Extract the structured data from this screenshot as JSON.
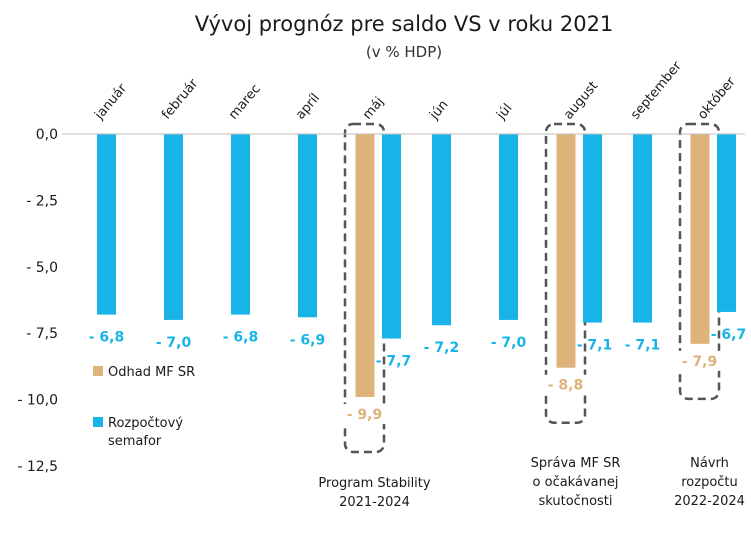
{
  "chart_data": {
    "type": "bar",
    "title": "Vývoj prognóz pre saldo VS v roku 2021",
    "subtitle": "(v % HDP)",
    "ylim": [
      -12.5,
      0
    ],
    "ytick_labels": [
      "0,0",
      "- 2,5",
      "- 5,0",
      "- 7,5",
      "- 10,0",
      "- 12,5"
    ],
    "ytick_values": [
      0,
      -2.5,
      -5,
      -7.5,
      -10,
      -12.5
    ],
    "grid": false,
    "legend_placement": "lower-left",
    "categories": [
      "január",
      "február",
      "marec",
      "apríl",
      "máj",
      "jún",
      "júl",
      "august",
      "september",
      "október"
    ],
    "series": [
      {
        "name": "Odhad MF SR",
        "color": "#ddb37a",
        "values": [
          null,
          null,
          null,
          null,
          -9.9,
          null,
          null,
          -8.8,
          null,
          -7.9
        ],
        "labels": [
          null,
          null,
          null,
          null,
          "- 9,9",
          null,
          null,
          "- 8,8",
          null,
          "- 7,9"
        ]
      },
      {
        "name": "Rozpočtový semafor",
        "color": "#18b4e8",
        "values": [
          -6.8,
          -7.0,
          -6.8,
          -6.9,
          -7.7,
          -7.2,
          -7.0,
          -7.1,
          -7.1,
          -6.7
        ],
        "labels": [
          "- 6,8",
          "- 7,0",
          "- 6,8",
          "- 6,9",
          "- 7,7",
          "- 7,2",
          "- 7,0",
          "- 7,1",
          "- 7,1",
          "- 6,7"
        ]
      }
    ],
    "legend": {
      "odhad": "Odhad MF SR",
      "semafor_line1": "Rozpočtový",
      "semafor_line2": "semafor"
    },
    "annotations": [
      {
        "category_index": 4,
        "lines": [
          "Program Stability",
          "2021-2024"
        ]
      },
      {
        "category_index": 7,
        "lines": [
          "Správa MF SR",
          "o očakávanej",
          "skutočnosti"
        ]
      },
      {
        "category_index": 9,
        "lines": [
          "Návrh",
          "rozpočtu",
          "2022-2024"
        ]
      }
    ],
    "highlight_style": "dashed rounded box"
  }
}
